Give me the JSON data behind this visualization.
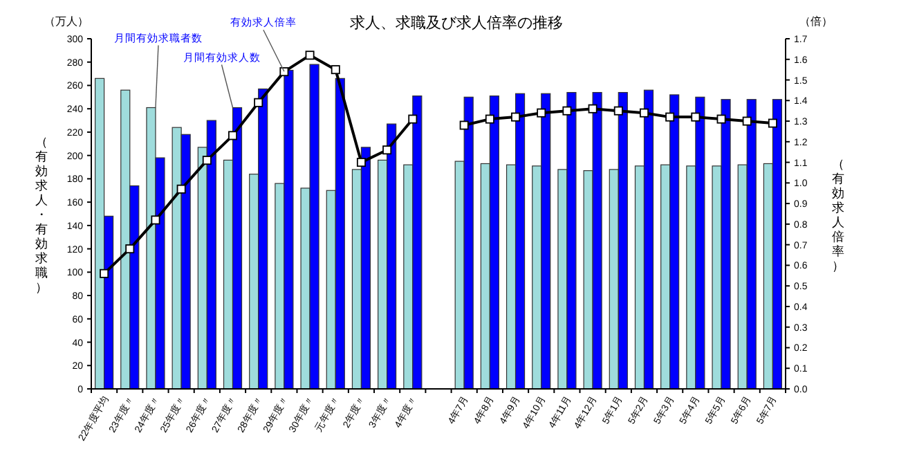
{
  "chart_data": {
    "type": "bar",
    "title": "求人、求職及び求人倍率の推移",
    "ylabel": "（有効求人・有効求職）",
    "y2label": "（有効求人倍率）",
    "categories": [
      "22年度平均",
      "23年度〃",
      "24年度〃",
      "25年度〃",
      "26年度〃",
      "27年度〃",
      "28年度〃",
      "29年度〃",
      "30年度〃",
      "元年度〃",
      "2年度〃",
      "3年度〃",
      "4年度〃",
      null,
      "4年7月",
      "4年8月",
      "4年9月",
      "4年10月",
      "4年11月",
      "4年12月",
      "5年1月",
      "5年2月",
      "5年3月",
      "5年4月",
      "5年5月",
      "5年6月",
      "5年7月"
    ],
    "series": [
      {
        "type": "bar",
        "color": "#9fdcdc",
        "values": [
          266,
          256,
          241,
          224,
          207,
          196,
          184,
          176,
          172,
          170,
          188,
          196,
          192,
          null,
          195,
          193,
          192,
          191,
          188,
          187,
          188,
          191,
          192,
          191,
          191,
          192,
          193
        ]
      },
      {
        "type": "bar",
        "color": "#0000ff",
        "values": [
          148,
          174,
          198,
          218,
          230,
          241,
          257,
          273,
          278,
          266,
          207,
          227,
          251,
          null,
          250,
          251,
          253,
          253,
          254,
          254,
          254,
          256,
          252,
          250,
          248,
          248,
          248
        ]
      },
      {
        "type": "line",
        "axis": "y2",
        "color": "#000000",
        "values": [
          0.56,
          0.68,
          0.82,
          0.97,
          1.11,
          1.23,
          1.39,
          1.54,
          1.62,
          1.55,
          1.1,
          1.16,
          1.31,
          null,
          1.28,
          1.31,
          1.32,
          1.34,
          1.35,
          1.36,
          1.35,
          1.34,
          1.32,
          1.32,
          1.31,
          1.3,
          1.29
        ]
      }
    ],
    "marker": "square",
    "line_style": "solid",
    "ylim": [
      0,
      300
    ],
    "yticks": [
      0,
      20,
      40,
      60,
      80,
      100,
      120,
      140,
      160,
      180,
      200,
      220,
      240,
      260,
      280,
      300
    ],
    "y2lim": [
      0,
      1.7
    ],
    "y2ticks": [
      {
        "value": 0,
        "label": "0.0"
      },
      {
        "value": 0.1,
        "label": "0.1"
      },
      {
        "value": 0.2,
        "label": "0.2"
      },
      {
        "value": 0.3,
        "label": "0.3"
      },
      {
        "value": 0.4,
        "label": "0.4"
      },
      {
        "value": 0.5,
        "label": "0.5"
      },
      {
        "value": 0.6,
        "label": "0.6"
      },
      {
        "value": 0.7,
        "label": "0.7"
      },
      {
        "value": 0.8,
        "label": "0.8"
      },
      {
        "value": 0.9,
        "label": "0.9"
      },
      {
        "value": 1,
        "label": "1.0"
      },
      {
        "value": 1.1,
        "label": "1.1"
      },
      {
        "value": 1.2,
        "label": "1.2"
      },
      {
        "value": 1.3,
        "label": "1.3"
      },
      {
        "value": 1.4,
        "label": "1.4"
      },
      {
        "value": 1.5,
        "label": "1.5"
      },
      {
        "value": 1.6,
        "label": "1.6"
      },
      {
        "value": 1.7,
        "label": "1.7"
      }
    ],
    "annotations": [
      "（万人）",
      "（倍）",
      {
        "text": "月間有効求職者数",
        "x": "24年度〃",
        "y": 241
      },
      {
        "text": "月間有効求人数",
        "x": "27年度〃",
        "y": 241
      },
      {
        "text": "有効求人倍率",
        "x": "29年度〃",
        "y": 272
      }
    ]
  }
}
